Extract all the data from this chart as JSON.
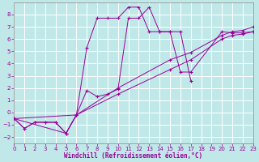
{
  "xlabel": "Windchill (Refroidissement éolien,°C)",
  "bg_color": "#c0e8e8",
  "grid_color": "#ffffff",
  "line_color": "#990099",
  "xlim": [
    0,
    23
  ],
  "ylim": [
    -2.5,
    9.0
  ],
  "xticks": [
    0,
    1,
    2,
    3,
    4,
    5,
    6,
    7,
    8,
    9,
    10,
    11,
    12,
    13,
    14,
    15,
    16,
    17,
    18,
    19,
    20,
    21,
    22,
    23
  ],
  "yticks": [
    -2,
    -1,
    0,
    1,
    2,
    3,
    4,
    5,
    6,
    7,
    8
  ],
  "line1_x": [
    0,
    1,
    2,
    3,
    4,
    5,
    6,
    7,
    8,
    9,
    10,
    11,
    12,
    13,
    14,
    15,
    16,
    17
  ],
  "line1_y": [
    -0.5,
    -1.3,
    -0.8,
    -0.8,
    -0.8,
    -1.7,
    -0.2,
    5.3,
    7.7,
    7.7,
    7.7,
    8.6,
    8.6,
    6.6,
    6.6,
    6.6,
    6.6,
    2.6
  ],
  "line2_x": [
    0,
    1,
    2,
    3,
    4,
    5,
    6,
    7,
    8,
    9,
    10,
    11,
    12,
    13,
    14,
    15,
    16,
    17,
    20,
    21,
    22,
    23
  ],
  "line2_y": [
    -0.5,
    -1.3,
    -0.8,
    -0.8,
    -0.8,
    -1.7,
    -0.2,
    1.8,
    1.3,
    1.5,
    1.9,
    7.7,
    7.7,
    8.6,
    6.6,
    6.6,
    3.3,
    3.3,
    6.6,
    6.5,
    6.5,
    6.6
  ],
  "line3_x": [
    0,
    6,
    10,
    15,
    17,
    20,
    21,
    22,
    23
  ],
  "line3_y": [
    -0.5,
    -0.2,
    2.0,
    4.3,
    4.9,
    6.3,
    6.6,
    6.7,
    7.0
  ],
  "line4_x": [
    0,
    5,
    6,
    10,
    15,
    17,
    20,
    21,
    22,
    23
  ],
  "line4_y": [
    -0.5,
    -1.7,
    -0.2,
    1.5,
    3.5,
    4.3,
    6.0,
    6.3,
    6.4,
    6.6
  ]
}
